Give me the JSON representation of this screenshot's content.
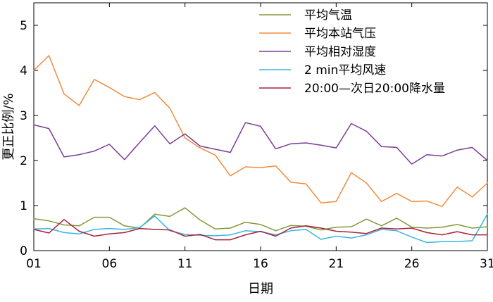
{
  "chart_data": {
    "type": "line",
    "xlabel": "日期",
    "ylabel": "更正比例/%",
    "xlim": [
      1,
      31
    ],
    "ylim": [
      0,
      5.5
    ],
    "x": [
      1,
      2,
      3,
      4,
      5,
      6,
      7,
      8,
      9,
      10,
      11,
      12,
      13,
      14,
      15,
      16,
      17,
      18,
      19,
      20,
      21,
      22,
      23,
      24,
      25,
      26,
      27,
      28,
      29,
      30,
      31
    ],
    "x_ticks": [
      {
        "value": 1,
        "label": "01"
      },
      {
        "value": 6,
        "label": "06"
      },
      {
        "value": 11,
        "label": "11"
      },
      {
        "value": 16,
        "label": "16"
      },
      {
        "value": 21,
        "label": "21"
      },
      {
        "value": 26,
        "label": "26"
      },
      {
        "value": 31,
        "label": "31"
      }
    ],
    "y_ticks": [
      {
        "value": 0,
        "label": "0"
      },
      {
        "value": 1,
        "label": "1"
      },
      {
        "value": 2,
        "label": "2"
      },
      {
        "value": 3,
        "label": "3"
      },
      {
        "value": 4,
        "label": "4"
      },
      {
        "value": 5,
        "label": "5"
      }
    ],
    "grid": false,
    "legend_position": "top-right",
    "series": [
      {
        "name": "平均气温",
        "color": "#7f9a3a",
        "values": [
          0.71,
          0.66,
          0.57,
          0.55,
          0.74,
          0.74,
          0.55,
          0.5,
          0.81,
          0.76,
          0.95,
          0.68,
          0.48,
          0.5,
          0.63,
          0.58,
          0.44,
          0.56,
          0.54,
          0.46,
          0.52,
          0.53,
          0.7,
          0.55,
          0.72,
          0.52,
          0.5,
          0.52,
          0.58,
          0.5,
          0.53
        ]
      },
      {
        "name": "平均本站气压",
        "color": "#f08c3b",
        "values": [
          4.0,
          4.33,
          3.48,
          3.22,
          3.8,
          3.62,
          3.42,
          3.35,
          3.51,
          3.16,
          2.5,
          2.28,
          2.12,
          1.66,
          1.86,
          1.84,
          1.88,
          1.52,
          1.48,
          1.06,
          1.09,
          1.73,
          1.5,
          1.09,
          1.27,
          1.09,
          1.1,
          0.98,
          1.41,
          1.19,
          1.5
        ]
      },
      {
        "name": "平均相对湿度",
        "color": "#7a3d96",
        "values": [
          2.79,
          2.71,
          2.08,
          2.13,
          2.21,
          2.36,
          2.02,
          2.4,
          2.77,
          2.37,
          2.59,
          2.32,
          2.25,
          2.18,
          2.84,
          2.76,
          2.26,
          2.37,
          2.39,
          2.34,
          2.28,
          2.82,
          2.65,
          2.31,
          2.29,
          1.92,
          2.13,
          2.1,
          2.23,
          2.29,
          2.0
        ]
      },
      {
        "name": "2 min平均风速",
        "color": "#38b6e0",
        "values": [
          0.48,
          0.49,
          0.4,
          0.37,
          0.47,
          0.49,
          0.47,
          0.51,
          0.77,
          0.44,
          0.36,
          0.34,
          0.33,
          0.35,
          0.44,
          0.42,
          0.35,
          0.44,
          0.47,
          0.25,
          0.32,
          0.28,
          0.35,
          0.47,
          0.44,
          0.3,
          0.18,
          0.2,
          0.2,
          0.22,
          0.81
        ]
      },
      {
        "name": "20:00—次日20:00降水量",
        "color": "#a8223a",
        "values": [
          0.47,
          0.39,
          0.69,
          0.43,
          0.32,
          0.37,
          0.4,
          0.49,
          0.47,
          0.46,
          0.32,
          0.36,
          0.24,
          0.24,
          0.35,
          0.43,
          0.32,
          0.5,
          0.55,
          0.5,
          0.43,
          0.41,
          0.38,
          0.5,
          0.48,
          0.5,
          0.4,
          0.35,
          0.42,
          0.35,
          0.35
        ]
      }
    ]
  }
}
